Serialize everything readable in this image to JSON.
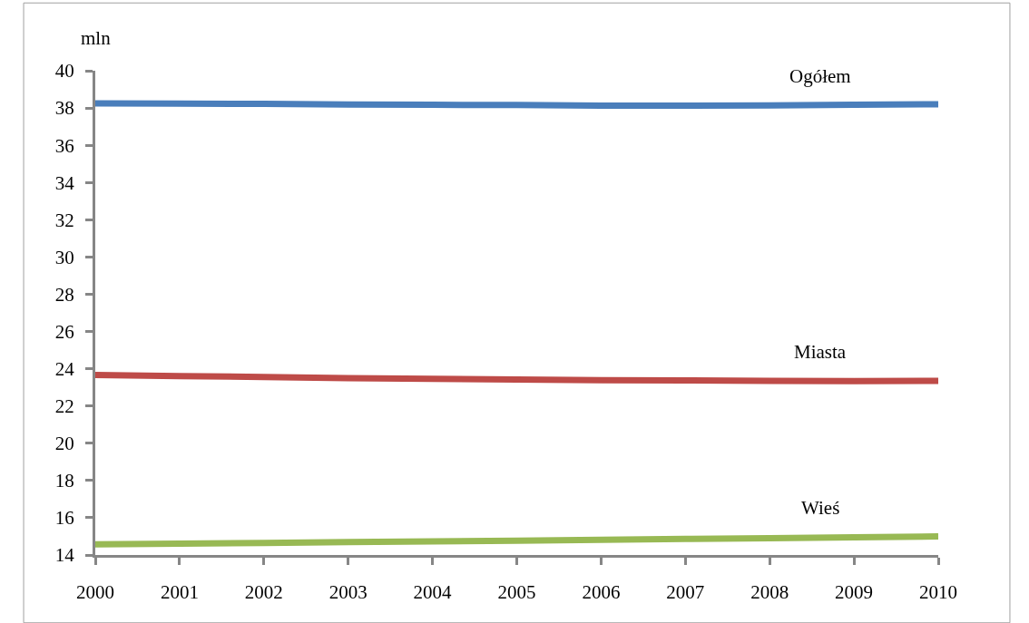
{
  "chart_data": {
    "type": "line",
    "ylabel": "mln",
    "x": [
      2000,
      2001,
      2002,
      2003,
      2004,
      2005,
      2006,
      2007,
      2008,
      2009,
      2010
    ],
    "series": [
      {
        "name": "Ogółem",
        "color": "#4a7ebb",
        "values": [
          38.25,
          38.24,
          38.22,
          38.19,
          38.17,
          38.16,
          38.13,
          38.12,
          38.14,
          38.17,
          38.2
        ]
      },
      {
        "name": "Miasta",
        "color": "#be4b48",
        "values": [
          23.67,
          23.61,
          23.56,
          23.5,
          23.46,
          23.42,
          23.39,
          23.37,
          23.35,
          23.34,
          23.35
        ]
      },
      {
        "name": "Wieś",
        "color": "#98b954",
        "values": [
          14.57,
          14.61,
          14.65,
          14.69,
          14.73,
          14.77,
          14.81,
          14.86,
          14.9,
          14.95,
          15.0
        ]
      }
    ],
    "xlim": [
      2000,
      2010
    ],
    "xticks": [
      2000,
      2001,
      2002,
      2003,
      2004,
      2005,
      2006,
      2007,
      2008,
      2009,
      2010
    ],
    "ylim": [
      14,
      40
    ],
    "yticks": [
      14,
      16,
      18,
      20,
      22,
      24,
      26,
      28,
      30,
      32,
      34,
      36,
      38,
      40
    ],
    "legend": false,
    "marker": "none",
    "line_style": "solid"
  }
}
